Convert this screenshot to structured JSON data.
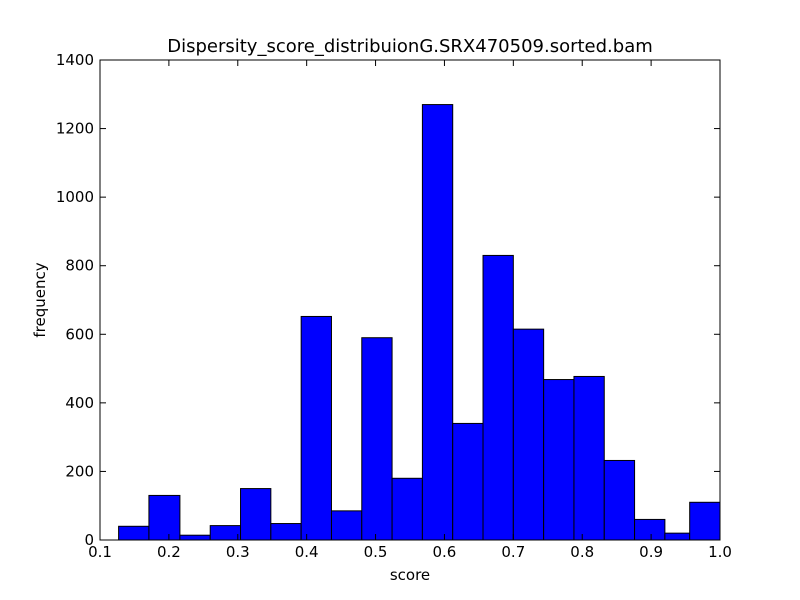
{
  "chart_data": {
    "type": "bar",
    "title": "Dispersity_score_distribuionG.SRX470509.sorted.bam",
    "xlabel": "score",
    "ylabel": "frequency",
    "xlim": [
      0.1,
      1.0
    ],
    "ylim": [
      0,
      1400
    ],
    "x_ticks": [
      0.1,
      0.2,
      0.3,
      0.4,
      0.5,
      0.6,
      0.7,
      0.8,
      0.9,
      1.0
    ],
    "x_tick_labels": [
      "0.1",
      "0.2",
      "0.3",
      "0.4",
      "0.5",
      "0.6",
      "0.7",
      "0.8",
      "0.9",
      "1.0"
    ],
    "y_ticks": [
      0,
      200,
      400,
      600,
      800,
      1000,
      1200,
      1400
    ],
    "y_tick_labels": [
      "0",
      "200",
      "400",
      "600",
      "800",
      "1000",
      "1200",
      "1400"
    ],
    "bar_color": "#0000ff",
    "bins": [
      {
        "x0": 0.127,
        "x1": 0.171,
        "value": 40
      },
      {
        "x0": 0.171,
        "x1": 0.216,
        "value": 130
      },
      {
        "x0": 0.216,
        "x1": 0.26,
        "value": 14
      },
      {
        "x0": 0.26,
        "x1": 0.304,
        "value": 42
      },
      {
        "x0": 0.304,
        "x1": 0.348,
        "value": 150
      },
      {
        "x0": 0.348,
        "x1": 0.392,
        "value": 48
      },
      {
        "x0": 0.392,
        "x1": 0.436,
        "value": 652
      },
      {
        "x0": 0.436,
        "x1": 0.48,
        "value": 85
      },
      {
        "x0": 0.48,
        "x1": 0.524,
        "value": 590
      },
      {
        "x0": 0.524,
        "x1": 0.568,
        "value": 180
      },
      {
        "x0": 0.568,
        "x1": 0.612,
        "value": 1270
      },
      {
        "x0": 0.612,
        "x1": 0.656,
        "value": 340
      },
      {
        "x0": 0.656,
        "x1": 0.7,
        "value": 830
      },
      {
        "x0": 0.7,
        "x1": 0.744,
        "value": 615
      },
      {
        "x0": 0.744,
        "x1": 0.788,
        "value": 468
      },
      {
        "x0": 0.788,
        "x1": 0.832,
        "value": 477
      },
      {
        "x0": 0.832,
        "x1": 0.876,
        "value": 232
      },
      {
        "x0": 0.876,
        "x1": 0.92,
        "value": 60
      },
      {
        "x0": 0.92,
        "x1": 0.956,
        "value": 20
      },
      {
        "x0": 0.956,
        "x1": 1.0,
        "value": 110
      }
    ]
  }
}
